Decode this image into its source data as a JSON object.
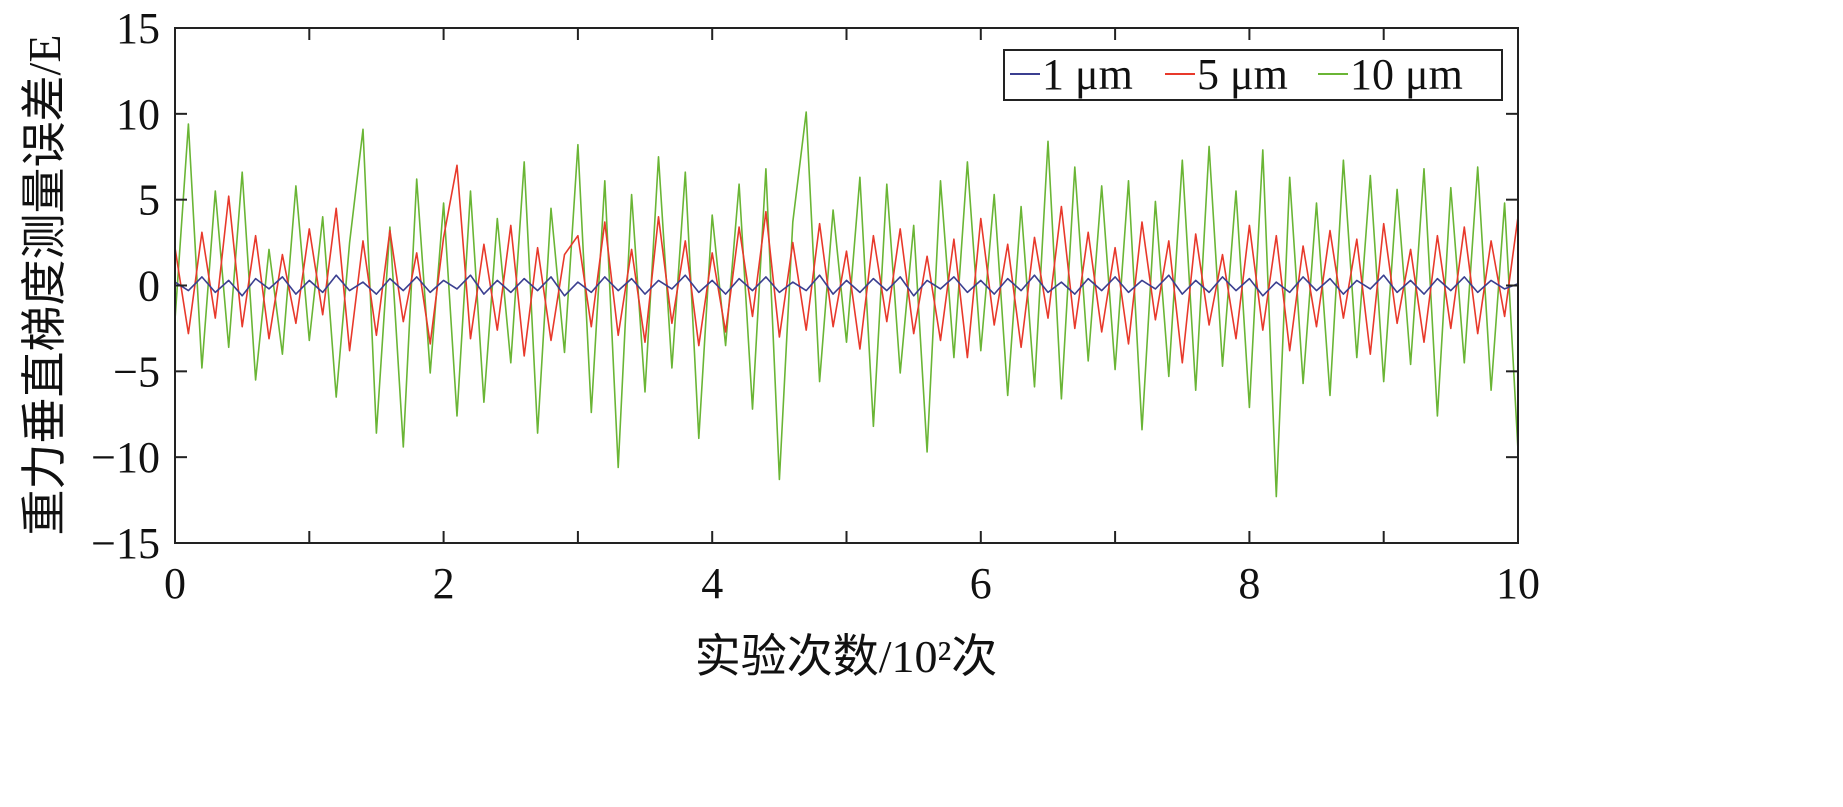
{
  "chart_data": {
    "type": "line",
    "xlabel": "实验次数/10²次",
    "ylabel": "重力垂直梯度测量误差/E",
    "xlim": [
      0,
      10
    ],
    "ylim": [
      -15,
      15
    ],
    "xticks": [
      "0",
      "2",
      "4",
      "6",
      "8",
      "10"
    ],
    "yticks": [
      "15",
      "10",
      "5",
      "0",
      "−5",
      "−10",
      "−15"
    ],
    "legend_placement": "top-right",
    "grid": false,
    "series": [
      {
        "name": "1 μm",
        "color": "#3b3f90",
        "values": [
          0.2,
          -0.3,
          0.5,
          -0.4,
          0.3,
          -0.6,
          0.4,
          -0.2,
          0.5,
          -0.5,
          0.3,
          -0.4,
          0.6,
          -0.3,
          0.2,
          -0.5,
          0.4,
          -0.3,
          0.5,
          -0.4,
          0.3,
          -0.2,
          0.6,
          -0.5,
          0.3,
          -0.4,
          0.4,
          -0.3,
          0.5,
          -0.6,
          0.2,
          -0.4,
          0.5,
          -0.3,
          0.4,
          -0.5,
          0.3,
          -0.2,
          0.6,
          -0.4,
          0.3,
          -0.5,
          0.4,
          -0.3,
          0.5,
          -0.4,
          0.2,
          -0.3,
          0.6,
          -0.5,
          0.3,
          -0.4,
          0.4,
          -0.3,
          0.5,
          -0.6,
          0.3,
          -0.2,
          0.5,
          -0.4,
          0.3,
          -0.5,
          0.4,
          -0.3,
          0.6,
          -0.4,
          0.2,
          -0.5,
          0.4,
          -0.3,
          0.5,
          -0.4,
          0.3,
          -0.2,
          0.6,
          -0.5,
          0.3,
          -0.4,
          0.5,
          -0.3,
          0.4,
          -0.6,
          0.2,
          -0.4,
          0.5,
          -0.3,
          0.4,
          -0.5,
          0.3,
          -0.2,
          0.6,
          -0.4,
          0.3,
          -0.5,
          0.4,
          -0.3,
          0.5,
          -0.4,
          0.3,
          -0.2,
          0.1
        ]
      },
      {
        "name": "5 μm",
        "color": "#e8392b",
        "values": [
          2.2,
          -2.8,
          3.1,
          -1.9,
          5.2,
          -2.4,
          2.9,
          -3.1,
          1.8,
          -2.2,
          3.3,
          -1.7,
          4.5,
          -3.8,
          2.6,
          -2.9,
          3.2,
          -2.1,
          1.9,
          -3.4,
          2.8,
          7.0,
          -3.1,
          2.4,
          -2.6,
          3.5,
          -4.1,
          2.2,
          -3.2,
          1.8,
          2.9,
          -2.4,
          3.7,
          -2.9,
          2.1,
          -3.3,
          4.0,
          -2.2,
          2.6,
          -3.5,
          1.9,
          -2.7,
          3.4,
          -1.8,
          4.3,
          -3.0,
          2.5,
          -2.6,
          3.6,
          -2.4,
          2.0,
          -3.7,
          2.9,
          -2.1,
          3.3,
          -2.8,
          1.7,
          -3.2,
          2.7,
          -4.2,
          3.9,
          -2.3,
          2.4,
          -3.6,
          2.8,
          -1.9,
          4.6,
          -2.5,
          3.1,
          -2.7,
          2.2,
          -3.4,
          3.7,
          -2.0,
          2.6,
          -4.5,
          3.0,
          -2.3,
          1.8,
          -3.1,
          3.5,
          -2.6,
          2.9,
          -3.8,
          2.3,
          -2.4,
          3.2,
          -1.9,
          2.7,
          -4.0,
          3.6,
          -2.2,
          2.1,
          -3.3,
          2.9,
          -2.5,
          3.4,
          -2.8,
          2.6,
          -1.8,
          4.0
        ]
      },
      {
        "name": "10 μm",
        "color": "#6ab535",
        "values": [
          -2.0,
          9.4,
          -4.8,
          5.5,
          -3.6,
          6.6,
          -5.5,
          2.1,
          -4.0,
          5.8,
          -3.2,
          4.0,
          -6.5,
          2.5,
          9.1,
          -8.6,
          3.4,
          -9.4,
          6.2,
          -5.1,
          4.8,
          -7.6,
          5.5,
          -6.8,
          3.9,
          -4.5,
          7.2,
          -8.6,
          4.5,
          -3.9,
          8.2,
          -7.4,
          6.1,
          -10.6,
          5.3,
          -6.2,
          7.5,
          -4.8,
          6.6,
          -8.9,
          4.1,
          -3.5,
          5.9,
          -7.2,
          6.8,
          -11.3,
          3.7,
          10.1,
          -5.6,
          4.4,
          -3.3,
          6.3,
          -8.2,
          5.9,
          -5.1,
          3.5,
          -9.7,
          6.1,
          -4.2,
          7.2,
          -3.8,
          5.3,
          -6.4,
          4.6,
          -5.9,
          8.4,
          -6.6,
          6.9,
          -4.4,
          5.8,
          -4.9,
          6.1,
          -8.4,
          4.9,
          -5.3,
          7.3,
          -6.1,
          8.1,
          -4.7,
          5.5,
          -7.1,
          7.9,
          -12.3,
          6.3,
          -5.7,
          4.8,
          -6.4,
          7.3,
          -4.2,
          6.4,
          -5.6,
          5.6,
          -4.6,
          6.8,
          -7.6,
          5.7,
          -4.5,
          6.9,
          -6.1,
          4.8,
          -9.6
        ]
      }
    ]
  }
}
